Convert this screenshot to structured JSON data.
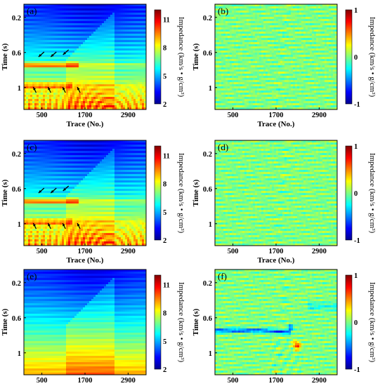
{
  "chart_data": [
    {
      "type": "heatmap",
      "panel_label": "(a)",
      "xlabel": "Trace (No.)",
      "ylabel": "Time (s)",
      "xticks": [
        500,
        1700,
        2900
      ],
      "yticks": [
        0.2,
        0.6,
        1
      ],
      "xlim": [
        0,
        3400
      ],
      "ylim": [
        0.05,
        1.25
      ],
      "colorbar": {
        "label": "Impedance (km/s • g/cm³)",
        "ticks": [
          2,
          5,
          8,
          11
        ],
        "range": [
          2,
          12
        ]
      },
      "colormap": "jet",
      "kind": "impedance",
      "annotations": "arrows"
    },
    {
      "type": "heatmap",
      "panel_label": "(b)",
      "xlabel": "Trace (No.)",
      "ylabel": "Time (s)",
      "xticks": [
        500,
        1700,
        2900
      ],
      "yticks": [
        0.2,
        0.6,
        1
      ],
      "xlim": [
        0,
        3400
      ],
      "ylim": [
        0.05,
        1.25
      ],
      "colorbar": {
        "label": "Impedance (km/s • g/cm³)",
        "ticks": [
          -1,
          0,
          1
        ],
        "range": [
          -1,
          1
        ]
      },
      "colormap": "jet",
      "kind": "residual"
    },
    {
      "type": "heatmap",
      "panel_label": "(c)",
      "xlabel": "Trace (No.)",
      "ylabel": "Time (s)",
      "xticks": [
        500,
        1700,
        2900
      ],
      "yticks": [
        0.2,
        0.6,
        1
      ],
      "xlim": [
        0,
        3400
      ],
      "ylim": [
        0.05,
        1.25
      ],
      "colorbar": {
        "label": "Impedance (km/s • g/cm³)",
        "ticks": [
          2,
          5,
          8,
          11
        ],
        "range": [
          2,
          12
        ]
      },
      "colormap": "jet",
      "kind": "impedance",
      "annotations": "arrows"
    },
    {
      "type": "heatmap",
      "panel_label": "(d)",
      "xlabel": "Trace (No.)",
      "ylabel": "Time (s)",
      "xticks": [
        500,
        1700,
        2900
      ],
      "yticks": [
        0.2,
        0.6,
        1
      ],
      "xlim": [
        0,
        3400
      ],
      "ylim": [
        0.05,
        1.25
      ],
      "colorbar": {
        "label": "Impedance (km/s • g/cm³)",
        "ticks": [
          -1,
          0,
          1
        ],
        "range": [
          -1,
          1
        ]
      },
      "colormap": "jet",
      "kind": "residual"
    },
    {
      "type": "heatmap",
      "panel_label": "(e)",
      "xlabel": "Trace (No.)",
      "ylabel": "Time (s)",
      "xticks": [
        500,
        1700,
        2900
      ],
      "yticks": [
        0.2,
        0.6,
        1
      ],
      "xlim": [
        0,
        3400
      ],
      "ylim": [
        0.05,
        1.25
      ],
      "colorbar": {
        "label": "Impedance (km/s • g/cm³)",
        "ticks": [
          2,
          5,
          8,
          11
        ],
        "range": [
          2,
          12
        ]
      },
      "colormap": "jet",
      "kind": "impedance_smooth"
    },
    {
      "type": "heatmap",
      "panel_label": "(f)",
      "xlabel": "Trace (No.)",
      "ylabel": "Time (s)",
      "xticks": [
        500,
        1700,
        2900
      ],
      "yticks": [
        0.2,
        0.6,
        1
      ],
      "xlim": [
        0,
        3400
      ],
      "ylim": [
        0.05,
        1.25
      ],
      "colorbar": {
        "label": "Impedance (km/s • g/cm³)",
        "ticks": [
          -1,
          0,
          1
        ],
        "range": [
          -1,
          1
        ]
      },
      "colormap": "jet",
      "kind": "residual_strong"
    }
  ]
}
